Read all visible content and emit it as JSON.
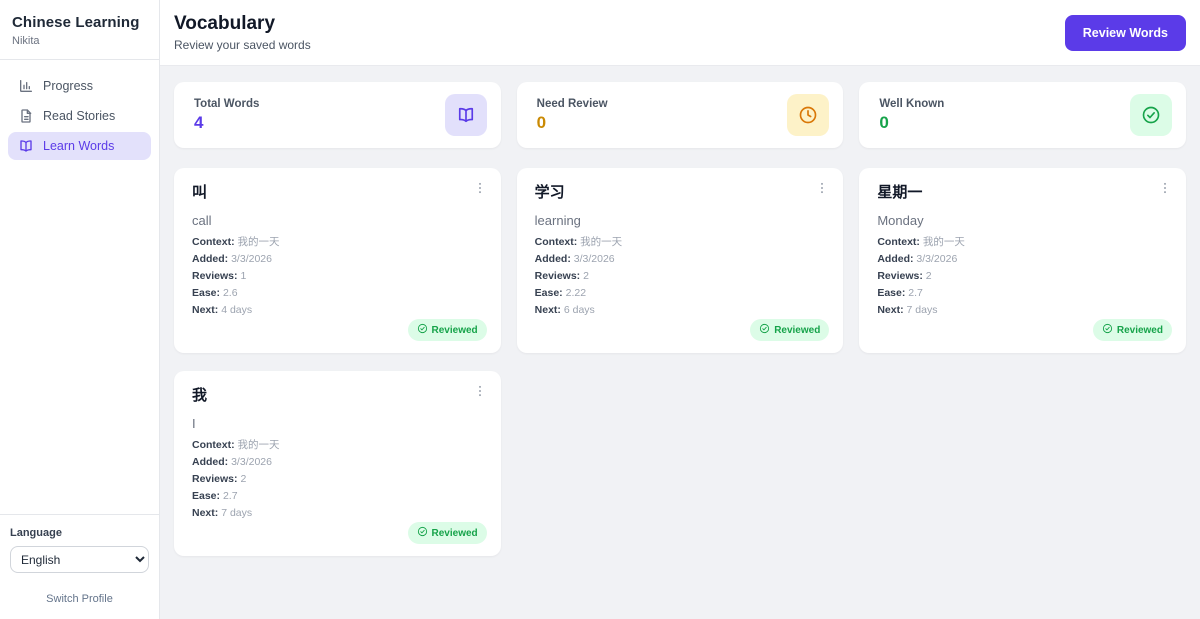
{
  "sidebar": {
    "app_title": "Chinese Learning",
    "profile_name": "Nikita",
    "nav": [
      {
        "label": "Progress",
        "icon": "bar-chart-icon",
        "active": false
      },
      {
        "label": "Read Stories",
        "icon": "document-icon",
        "active": false
      },
      {
        "label": "Learn Words",
        "icon": "book-icon",
        "active": true
      }
    ],
    "language_label": "Language",
    "language_value": "English",
    "switch_profile_label": "Switch Profile"
  },
  "header": {
    "title": "Vocabulary",
    "subtitle": "Review your saved words",
    "review_button_label": "Review Words"
  },
  "stats": [
    {
      "label": "Total Words",
      "value": "4",
      "icon": "book-icon",
      "value_color": "#5b3be8",
      "icon_color": "#5b3be8",
      "icon_bg": "#e2e0fb"
    },
    {
      "label": "Need Review",
      "value": "0",
      "icon": "clock-icon",
      "value_color": "#ca8a04",
      "icon_color": "#d97706",
      "icon_bg": "#fdf2c8"
    },
    {
      "label": "Well Known",
      "value": "0",
      "icon": "check-circle-icon",
      "value_color": "#16a34a",
      "icon_color": "#16a34a",
      "icon_bg": "#dcfce7"
    }
  ],
  "detail_labels": {
    "context": "Context:",
    "added": "Added:",
    "reviews": "Reviews:",
    "ease": "Ease:",
    "next": "Next:"
  },
  "cards": [
    {
      "hanzi": "叫",
      "translation": "call",
      "context": "我的一天",
      "added": "3/3/2026",
      "reviews": "1",
      "ease": "2.6",
      "next": "4 days",
      "badge": "Reviewed"
    },
    {
      "hanzi": "学习",
      "translation": "learning",
      "context": "我的一天",
      "added": "3/3/2026",
      "reviews": "2",
      "ease": "2.22",
      "next": "6 days",
      "badge": "Reviewed"
    },
    {
      "hanzi": "星期一",
      "translation": "Monday",
      "context": "我的一天",
      "added": "3/3/2026",
      "reviews": "2",
      "ease": "2.7",
      "next": "7 days",
      "badge": "Reviewed"
    },
    {
      "hanzi": "我",
      "translation": "I",
      "context": "我的一天",
      "added": "3/3/2026",
      "reviews": "2",
      "ease": "2.7",
      "next": "7 days",
      "badge": "Reviewed"
    }
  ]
}
